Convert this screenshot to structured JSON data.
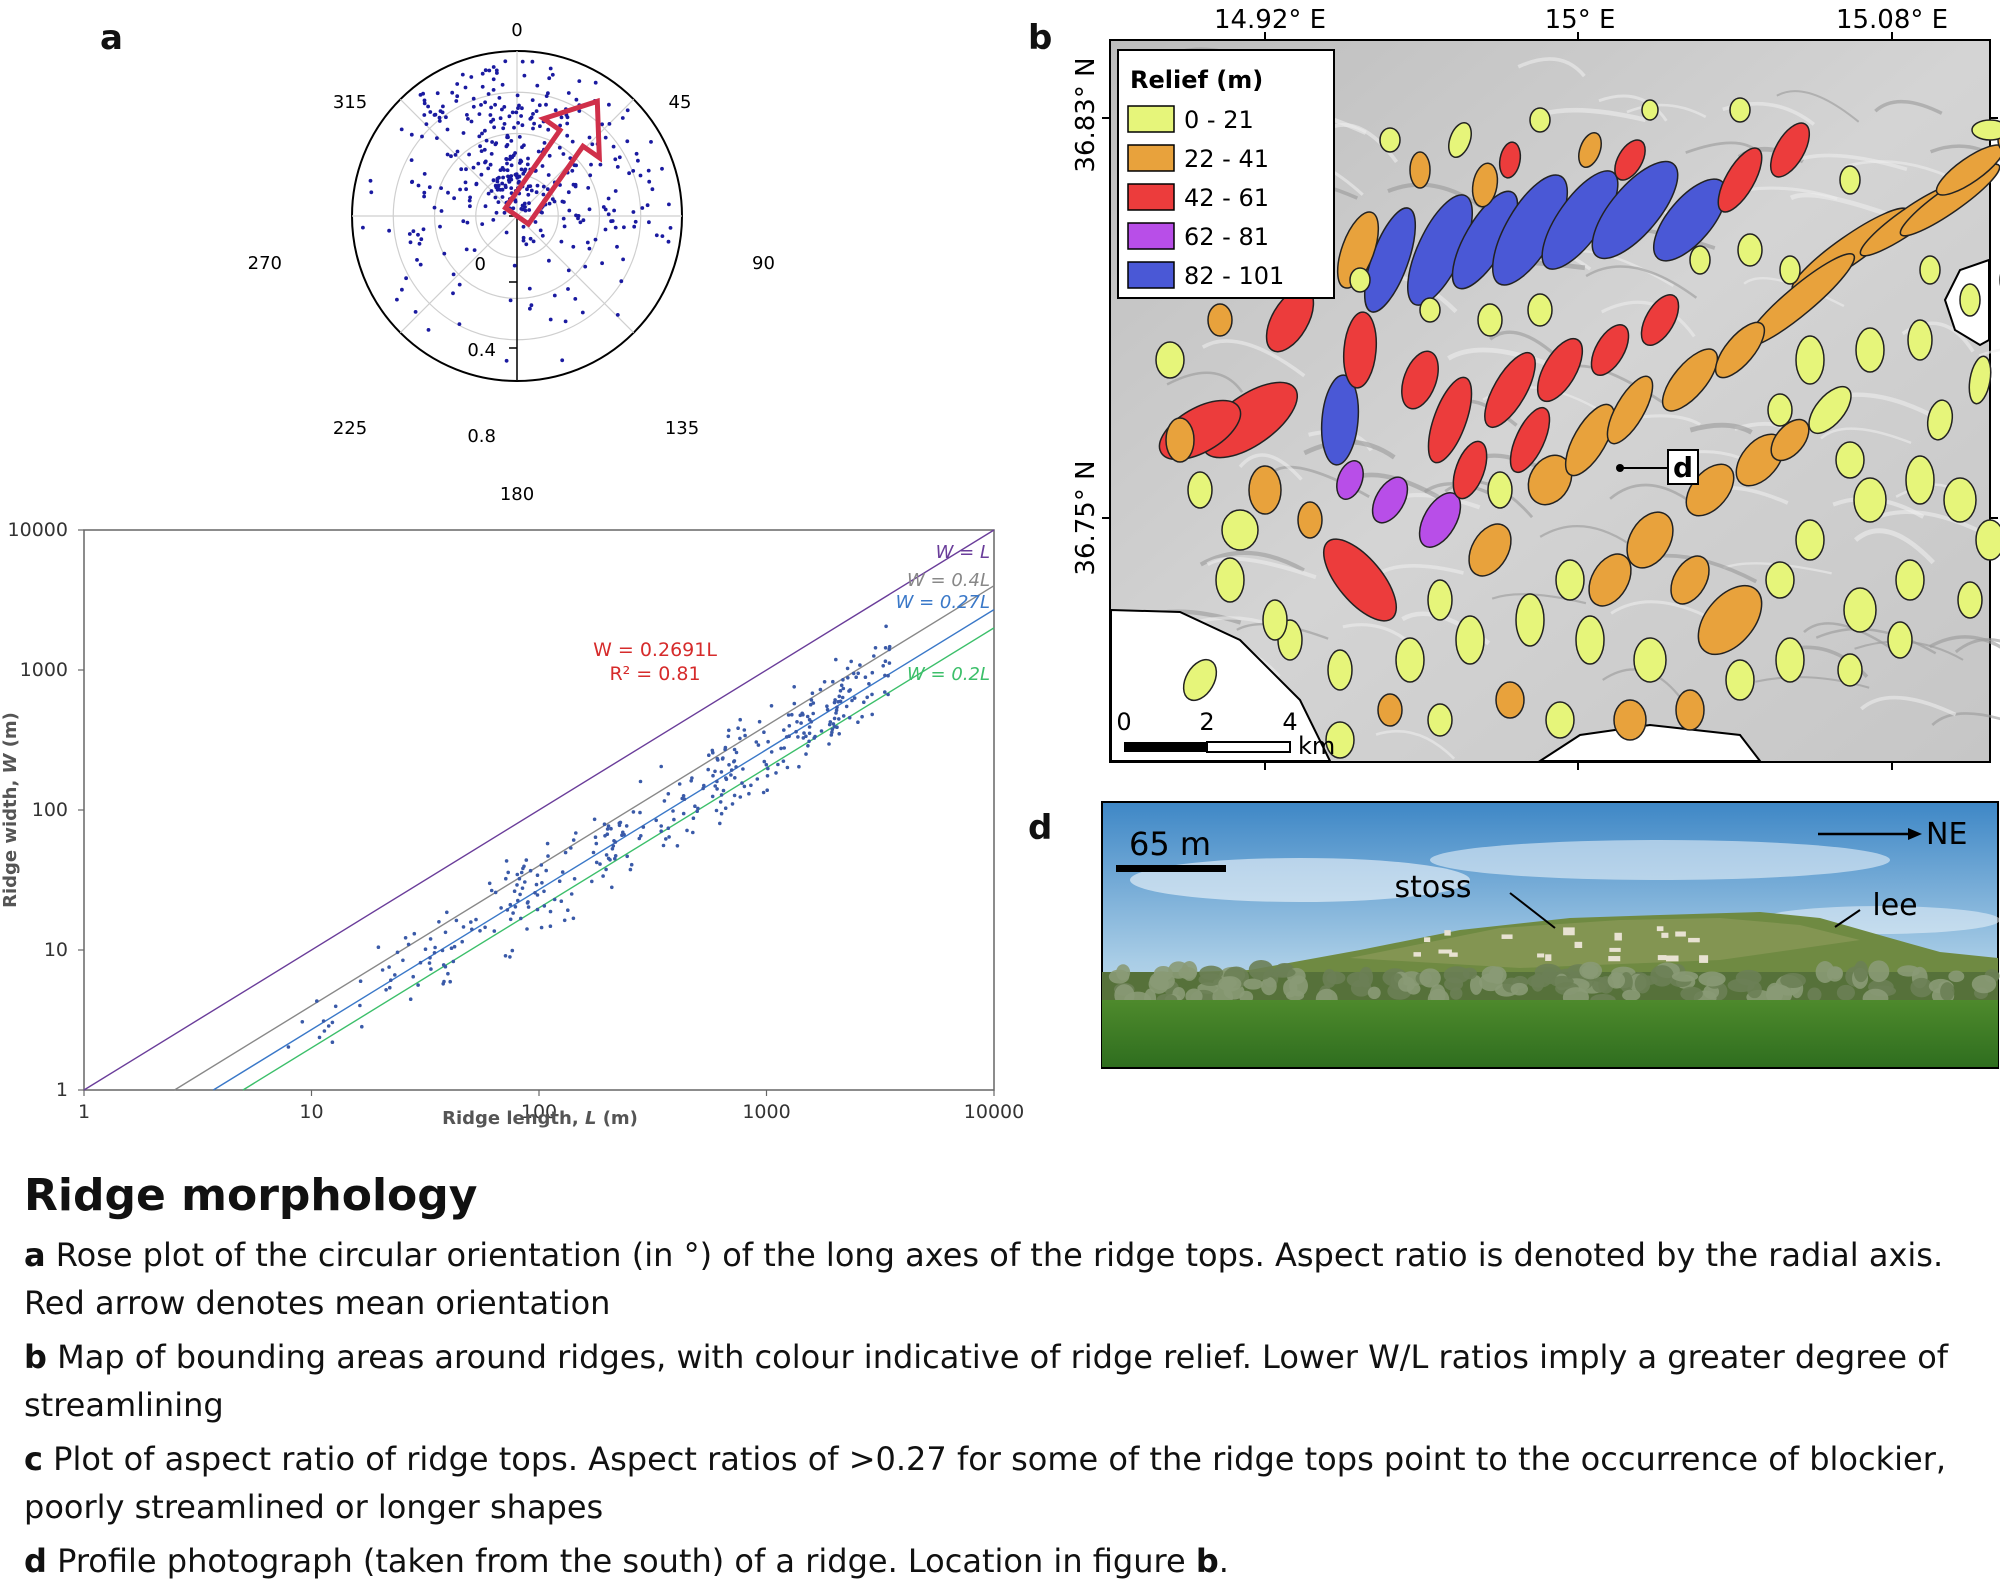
{
  "panels": {
    "a": "a",
    "b": "b",
    "c": "c",
    "d": "d"
  },
  "panel_a": {
    "angle_labels": {
      "n": "0",
      "ne": "45",
      "e": "90",
      "se": "135",
      "s": "180",
      "sw": "225",
      "w": "270",
      "nw": "315"
    },
    "radial_labels": [
      "0",
      "0.4",
      "0.8"
    ],
    "mean_orientation_deg": 35,
    "arrow_color": "#d0304a",
    "point_color": "#1a1aa0"
  },
  "panel_b": {
    "lon_labels": [
      "14.92° E",
      "15° E",
      "15.08° E"
    ],
    "lat_labels": [
      "36.83° N",
      "36.75° N"
    ],
    "legend": {
      "title": "Relief (m)",
      "items": [
        {
          "label": "0 - 21",
          "color": "#e6f57a"
        },
        {
          "label": "22 - 41",
          "color": "#e8a23c"
        },
        {
          "label": "42 - 61",
          "color": "#ec3c3c"
        },
        {
          "label": "62 - 81",
          "color": "#b84ee8"
        },
        {
          "label": "82 - 101",
          "color": "#4a58d6"
        }
      ]
    },
    "scale": {
      "ticks": [
        "0",
        "2",
        "4"
      ],
      "unit": "km"
    },
    "photo_marker": "d"
  },
  "panel_c": {
    "chart_data": {
      "type": "scatter",
      "xlabel_prefix": "Ridge length, ",
      "xlabel_var": "L",
      "xlabel_unit": " (m)",
      "ylabel_prefix": "Ridge width, ",
      "ylabel_var": "W",
      "ylabel_unit": " (m)",
      "x_scale": "log",
      "y_scale": "log",
      "xlim": [
        1,
        10000
      ],
      "ylim": [
        1,
        10000
      ],
      "x_ticks": [
        "1",
        "10",
        "100",
        "1000",
        "10000"
      ],
      "y_ticks": [
        "1",
        "10",
        "100",
        "1000",
        "10000"
      ],
      "lines": [
        {
          "label": "W = L",
          "slope": 1.0,
          "color": "#6a3d9a"
        },
        {
          "label": "W = 0.4L",
          "slope": 0.4,
          "color": "#888888"
        },
        {
          "label": "W = 0.27L",
          "slope": 0.27,
          "color": "#3a78c8"
        },
        {
          "label": "W = 0.2L",
          "slope": 0.2,
          "color": "#3cbf6a"
        }
      ],
      "fit": {
        "equation": "W = 0.2691L",
        "r2": "R² = 0.81",
        "color": "#d62b2b"
      },
      "point_color": "#3a5aa8"
    }
  },
  "panel_d": {
    "scale": "65 m",
    "direction": "NE",
    "labels": {
      "stoss": "stoss",
      "lee": "lee"
    }
  },
  "caption": {
    "title": "Ridge morphology",
    "items": [
      {
        "letter": "a",
        "text": " Rose plot of the circular orientation (in °) of the long axes of the ridge tops. Aspect ratio is denoted by the radial axis. Red arrow denotes mean orientation"
      },
      {
        "letter": "b",
        "text": " Map of bounding areas around ridges, with colour indicative of ridge relief. Lower W/L ratios imply a greater degree of streamlining"
      },
      {
        "letter": "c",
        "text": " Plot of aspect ratio of ridge tops. Aspect ratios of >0.27 for some of the ridge tops point to the occurrence of blockier, poorly streamlined or longer shapes"
      },
      {
        "letter": "d",
        "text": " Profile photograph (taken from the south) of a ridge. Location in figure ",
        "ref": "b",
        "end": "."
      }
    ]
  }
}
